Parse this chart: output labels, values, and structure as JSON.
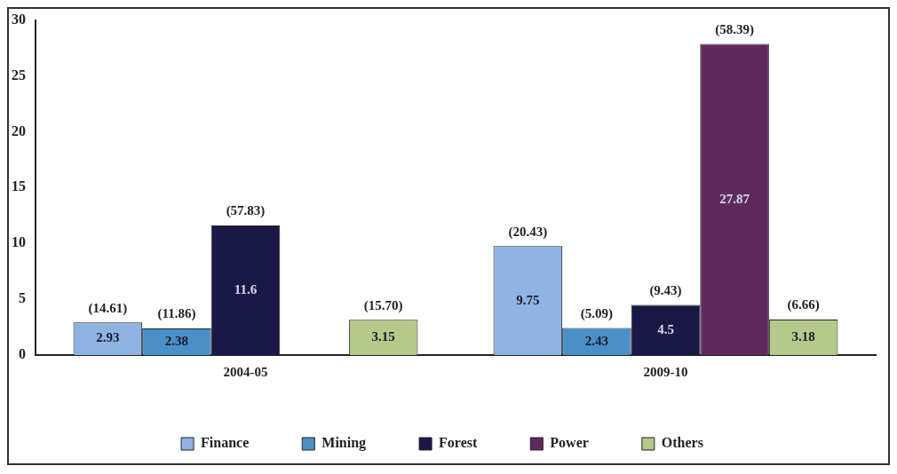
{
  "chart_data": {
    "type": "bar",
    "categories": [
      "2004-05",
      "2009-10"
    ],
    "series": [
      {
        "name": "Finance",
        "color": "#8fb4e3",
        "values": [
          2.93,
          9.75
        ],
        "value_labels": [
          "2.93",
          "9.75"
        ]
      },
      {
        "name": "Mining",
        "color": "#4a90c8",
        "values": [
          2.38,
          2.43
        ],
        "value_labels": [
          "2.38",
          "2.43"
        ]
      },
      {
        "name": "Forest",
        "color": "#1a1846",
        "values": [
          11.6,
          4.5
        ],
        "value_labels": [
          "11.6",
          "4.5"
        ]
      },
      {
        "name": "Power",
        "color": "#5e2a5e",
        "values": [
          null,
          27.87
        ],
        "value_labels": [
          null,
          "27.87"
        ]
      },
      {
        "name": "Others",
        "color": "#b5c98a",
        "values": [
          3.15,
          3.18
        ],
        "value_labels": [
          "3.15",
          "3.18"
        ]
      }
    ],
    "annotations": [
      "(14.61)",
      "(11.86)",
      "(57.83)",
      "(15.70)",
      "(20.43)",
      "(5.09)",
      "(9.43)",
      "(58.39)",
      "(6.66)"
    ],
    "ylim": [
      0,
      30
    ],
    "yticks": [
      0,
      5,
      10,
      15,
      20,
      25,
      30
    ],
    "grid": false,
    "legend": "bottom"
  }
}
